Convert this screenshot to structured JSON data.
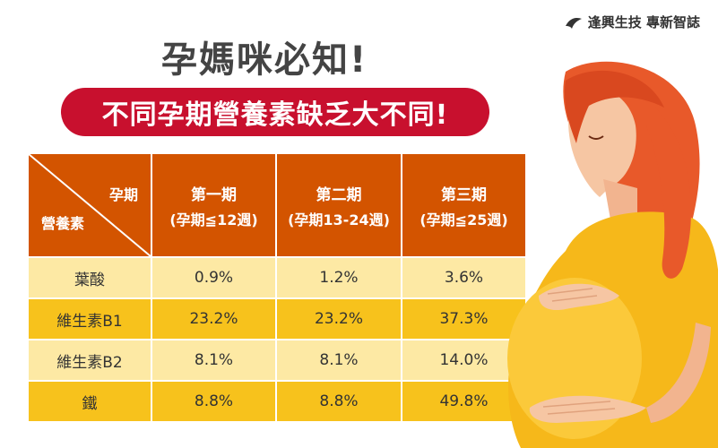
{
  "brand": {
    "text": "逢興生技 專新智誌"
  },
  "title": "孕媽咪必知!",
  "subtitle": "不同孕期營養素缺乏大不同!",
  "table": {
    "corner_top": "孕期",
    "corner_bottom": "營養素",
    "columns": [
      {
        "line1": "第一期",
        "line2": "(孕期≦12週)"
      },
      {
        "line1": "第二期",
        "line2": "(孕期13-24週)"
      },
      {
        "line1": "第三期",
        "line2": "(孕期≦25週)"
      }
    ],
    "rows": [
      {
        "name": "葉酸",
        "values": [
          "0.9%",
          "1.2%",
          "3.6%"
        ]
      },
      {
        "name": "維生素B1",
        "values": [
          "23.2%",
          "23.2%",
          "37.3%"
        ]
      },
      {
        "name": "維生素B2",
        "values": [
          "8.1%",
          "8.1%",
          "14.0%"
        ]
      },
      {
        "name": "鐵",
        "values": [
          "8.8%",
          "8.8%",
          "49.8%"
        ]
      }
    ]
  },
  "colors": {
    "header_bg": "#d35400",
    "row_light": "#fde9a4",
    "row_dark": "#f7c21c",
    "pill": "#c8102e"
  },
  "icons": {
    "brand_logo": "leaf-logo-icon",
    "illustration": "pregnant-woman-illustration"
  }
}
